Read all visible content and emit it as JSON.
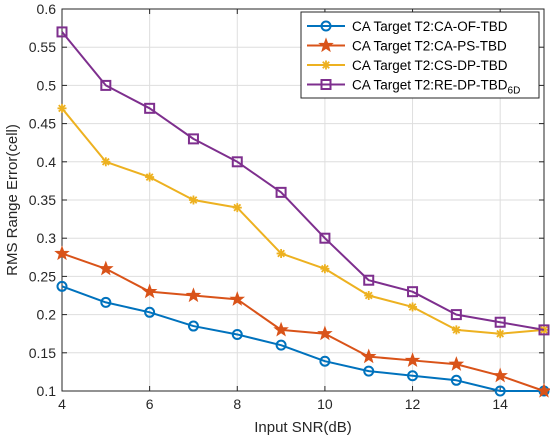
{
  "chart_data": {
    "type": "line",
    "title": "",
    "xlabel": "Input SNR(dB)",
    "ylabel": "RMS Range Error(cell)",
    "xlim": [
      4,
      15
    ],
    "ylim": [
      0.1,
      0.6
    ],
    "xticks": [
      4,
      6,
      8,
      10,
      12,
      14
    ],
    "yticks": [
      0.1,
      0.15,
      0.2,
      0.25,
      0.3,
      0.35,
      0.4,
      0.45,
      0.5,
      0.55,
      0.6
    ],
    "grid": true,
    "legend_position": "top-right",
    "x": [
      4,
      5,
      6,
      7,
      8,
      9,
      10,
      11,
      12,
      13,
      14,
      15
    ],
    "series": [
      {
        "name": "CA Target T2:CA-OF-TBD",
        "name_sub": "",
        "color": "#0072BD",
        "marker": "circle",
        "values": [
          0.237,
          0.216,
          0.203,
          0.185,
          0.174,
          0.16,
          0.139,
          0.126,
          0.12,
          0.114,
          0.1,
          0.1
        ]
      },
      {
        "name": "CA Target T2:CA-PS-TBD",
        "name_sub": "",
        "color": "#D95319",
        "marker": "star",
        "values": [
          0.28,
          0.26,
          0.23,
          0.225,
          0.22,
          0.18,
          0.175,
          0.145,
          0.14,
          0.135,
          0.12,
          0.1
        ]
      },
      {
        "name": "CA Target T2:CS-DP-TBD",
        "name_sub": "",
        "color": "#EDB120",
        "marker": "asterisk",
        "values": [
          0.47,
          0.4,
          0.38,
          0.35,
          0.34,
          0.28,
          0.26,
          0.225,
          0.21,
          0.18,
          0.175,
          0.18
        ]
      },
      {
        "name": "CA Target T2:RE-DP-TBD",
        "name_sub": "6D",
        "color": "#7E2F8E",
        "marker": "square",
        "values": [
          0.57,
          0.5,
          0.47,
          0.43,
          0.4,
          0.36,
          0.3,
          0.245,
          0.23,
          0.2,
          0.19,
          0.18
        ]
      }
    ]
  }
}
